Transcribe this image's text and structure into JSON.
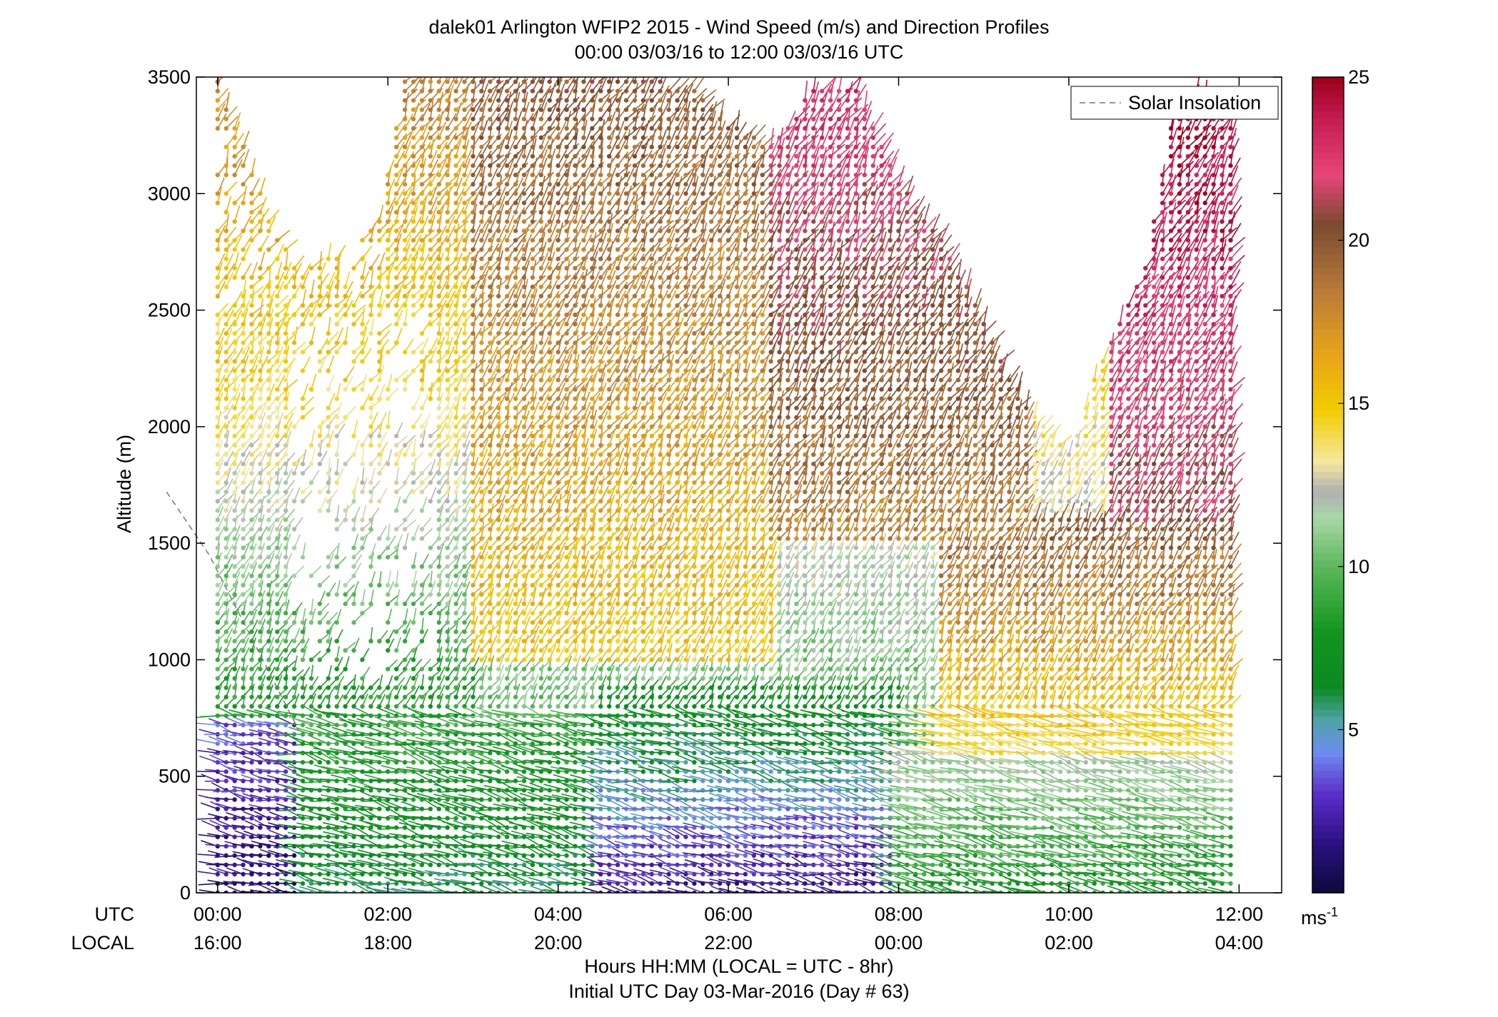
{
  "chart_data": {
    "type": "scatter",
    "title": "dalek01 Arlington WFIP2 2015 - Wind Speed (m/s) and Direction Profiles",
    "subtitle": "00:00 03/03/16 to 12:00 03/03/16  UTC",
    "xlabel": "Hours HH:MM  (LOCAL = UTC - 8hr)",
    "xlabel2": "Initial UTC Day 03-Mar-2016 (Day # 63)",
    "ylabel": "Altitude (m)",
    "row_labels": {
      "utc": "UTC",
      "local": "LOCAL"
    },
    "xlim": [
      -0.25,
      12.5
    ],
    "ylim": [
      0,
      3500
    ],
    "utc_ticks": [
      "00:00",
      "02:00",
      "04:00",
      "06:00",
      "08:00",
      "10:00",
      "12:00"
    ],
    "local_ticks": [
      "16:00",
      "18:00",
      "20:00",
      "22:00",
      "00:00",
      "02:00",
      "04:00"
    ],
    "yticks": [
      "0",
      "500",
      "1000",
      "1500",
      "2000",
      "2500",
      "3000",
      "3500"
    ],
    "legend": {
      "label": "Solar Insolation",
      "placement": "top-right",
      "style": "dashed",
      "color": "#777777"
    },
    "colorbar": {
      "ticks": [
        "5",
        "10",
        "15",
        "20",
        "25"
      ],
      "range": [
        0,
        25
      ],
      "unit": "ms",
      "unit_exponent": "-1",
      "stops": [
        {
          "v": 0,
          "c": "#0d0a3a"
        },
        {
          "v": 1.5,
          "c": "#2a1080"
        },
        {
          "v": 3.0,
          "c": "#5a2cc8"
        },
        {
          "v": 4.3,
          "c": "#6e8cf0"
        },
        {
          "v": 5.3,
          "c": "#4fa3a8"
        },
        {
          "v": 6.3,
          "c": "#0b8a22"
        },
        {
          "v": 8.0,
          "c": "#12951f"
        },
        {
          "v": 10.0,
          "c": "#5cb85c"
        },
        {
          "v": 11.5,
          "c": "#aad7a8"
        },
        {
          "v": 12.3,
          "c": "#b0b0b0"
        },
        {
          "v": 13.2,
          "c": "#f5e8a0"
        },
        {
          "v": 14.8,
          "c": "#f2cc00"
        },
        {
          "v": 16.5,
          "c": "#e8a419"
        },
        {
          "v": 18.5,
          "c": "#b87a3a"
        },
        {
          "v": 20.5,
          "c": "#7a4a30"
        },
        {
          "v": 22.0,
          "c": "#e8457a"
        },
        {
          "v": 23.8,
          "c": "#c21a52"
        },
        {
          "v": 25.0,
          "c": "#9a0018"
        }
      ]
    },
    "solar_insolation": {
      "x": [
        -0.6,
        -0.1,
        0.25,
        0.6,
        0.95
      ],
      "y": [
        1720,
        1450,
        1200,
        950,
        700
      ]
    },
    "profile_times_hours": [
      0.0,
      0.1,
      0.2,
      0.3,
      0.4,
      0.5,
      0.6,
      0.7,
      0.8,
      0.9,
      1.0,
      1.1,
      1.2,
      1.3,
      1.4,
      1.5,
      1.6,
      1.7,
      1.8,
      1.9,
      2.0,
      2.1,
      2.2,
      2.3,
      2.4,
      2.5,
      2.6,
      2.7,
      2.8,
      2.9,
      3.0,
      3.1,
      3.2,
      3.3,
      3.4,
      3.5,
      3.6,
      3.7,
      3.8,
      3.9,
      4.0,
      4.1,
      4.2,
      4.3,
      4.4,
      4.5,
      4.6,
      4.7,
      4.8,
      4.9,
      5.0,
      5.1,
      5.2,
      5.3,
      5.4,
      5.5,
      5.6,
      5.7,
      5.8,
      5.9,
      6.0,
      6.1,
      6.2,
      6.3,
      6.4,
      6.5,
      6.6,
      6.7,
      6.8,
      6.9,
      7.0,
      7.1,
      7.2,
      7.3,
      7.4,
      7.5,
      7.6,
      7.7,
      7.8,
      7.9,
      8.0,
      8.1,
      8.2,
      8.3,
      8.4,
      8.5,
      8.6,
      8.7,
      8.8,
      8.9,
      9.0,
      9.1,
      9.2,
      9.3,
      9.4,
      9.5,
      9.6,
      9.7,
      9.8,
      9.9,
      10.0,
      10.1,
      10.2,
      10.3,
      10.4,
      10.5,
      10.6,
      10.7,
      10.8,
      10.9,
      11.0,
      11.1,
      11.2,
      11.3,
      11.4,
      11.5,
      11.6,
      11.7,
      11.8,
      11.9
    ],
    "altitude_bin_spacing_m": 40,
    "max_altitude_by_time": [
      [
        0.0,
        3500
      ],
      [
        0.3,
        3200
      ],
      [
        0.6,
        2900
      ],
      [
        0.9,
        2700
      ],
      [
        1.2,
        2700
      ],
      [
        1.6,
        2800
      ],
      [
        1.9,
        2900
      ],
      [
        2.2,
        3500
      ],
      [
        2.6,
        3500
      ],
      [
        3.0,
        3500
      ],
      [
        3.5,
        3500
      ],
      [
        4.0,
        3500
      ],
      [
        4.5,
        3500
      ],
      [
        5.0,
        3500
      ],
      [
        5.6,
        3450
      ],
      [
        6.0,
        3300
      ],
      [
        6.5,
        3200
      ],
      [
        7.0,
        3450
      ],
      [
        7.5,
        3450
      ],
      [
        7.8,
        3200
      ],
      [
        8.1,
        3000
      ],
      [
        8.5,
        2800
      ],
      [
        8.9,
        2550
      ],
      [
        9.2,
        2300
      ],
      [
        9.6,
        2050
      ],
      [
        10.0,
        1900
      ],
      [
        10.3,
        2200
      ],
      [
        10.6,
        2450
      ],
      [
        10.9,
        2700
      ],
      [
        11.2,
        3300
      ],
      [
        11.5,
        3450
      ],
      [
        11.9,
        3300
      ]
    ],
    "speed_layers_m_s": [
      {
        "t_start": 0.0,
        "t_end": 1.0,
        "alt_range": [
          0,
          850
        ],
        "speed_range": [
          1,
          4
        ]
      },
      {
        "t_start": 1.0,
        "t_end": 4.5,
        "alt_range": [
          0,
          750
        ],
        "speed_range": [
          6,
          9
        ]
      },
      {
        "t_start": 4.5,
        "t_end": 8.0,
        "alt_range": [
          0,
          900
        ],
        "speed_range": [
          2,
          8
        ]
      },
      {
        "t_start": 8.0,
        "t_end": 12.0,
        "alt_range": [
          0,
          600
        ],
        "speed_range": [
          8,
          12
        ]
      },
      {
        "t_start": 8.5,
        "t_end": 12.0,
        "alt_range": [
          600,
          1600
        ],
        "speed_range": [
          14,
          20
        ]
      },
      {
        "t_start": 0.0,
        "t_end": 3.0,
        "alt_range": [
          750,
          2300
        ],
        "speed_range": [
          8,
          15
        ]
      },
      {
        "t_start": 3.0,
        "t_end": 6.5,
        "alt_range": [
          1000,
          3500
        ],
        "speed_range": [
          15,
          20
        ]
      },
      {
        "t_start": 6.5,
        "t_end": 9.5,
        "alt_range": [
          1500,
          3500
        ],
        "speed_range": [
          18,
          23
        ]
      },
      {
        "t_start": 10.5,
        "t_end": 12.0,
        "alt_range": [
          1600,
          3500
        ],
        "speed_range": [
          21,
          25
        ]
      }
    ]
  }
}
